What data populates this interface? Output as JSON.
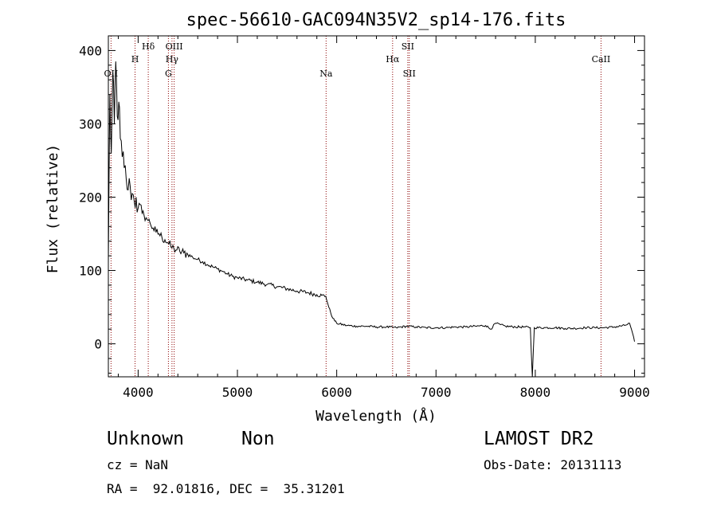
{
  "chart_data": {
    "type": "line",
    "title": "spec-56610-GAC094N35V2_sp14-176.fits",
    "xlabel": "Wavelength (Å)",
    "ylabel": "Flux (relative)",
    "xlim": [
      3700,
      9100
    ],
    "ylim": [
      -45,
      420
    ],
    "x_ticks": [
      "4000",
      "5000",
      "6000",
      "7000",
      "8000",
      "9000"
    ],
    "y_ticks": [
      "0",
      "100",
      "200",
      "300",
      "400"
    ],
    "x_tick_values": [
      4000,
      5000,
      6000,
      7000,
      8000,
      9000
    ],
    "y_tick_values": [
      0,
      100,
      200,
      300,
      400
    ],
    "series": [
      {
        "values": [
          [
            3700,
            110
          ],
          [
            3715,
            340
          ],
          [
            3730,
            260
          ],
          [
            3745,
            370
          ],
          [
            3760,
            300
          ],
          [
            3775,
            385
          ],
          [
            3790,
            310
          ],
          [
            3805,
            330
          ],
          [
            3820,
            280
          ],
          [
            3840,
            255
          ],
          [
            3860,
            240
          ],
          [
            3880,
            225
          ],
          [
            3900,
            210
          ],
          [
            3920,
            215
          ],
          [
            3940,
            205
          ],
          [
            3960,
            195
          ],
          [
            3980,
            200
          ],
          [
            4000,
            185
          ],
          [
            4020,
            190
          ],
          [
            4040,
            178
          ],
          [
            4060,
            175
          ],
          [
            4080,
            172
          ],
          [
            4100,
            168
          ],
          [
            4120,
            165
          ],
          [
            4150,
            158
          ],
          [
            4180,
            152
          ],
          [
            4210,
            150
          ],
          [
            4240,
            145
          ],
          [
            4270,
            142
          ],
          [
            4300,
            138
          ],
          [
            4330,
            132
          ],
          [
            4360,
            130
          ],
          [
            4390,
            128
          ],
          [
            4420,
            126
          ],
          [
            4460,
            124
          ],
          [
            4500,
            122
          ],
          [
            4550,
            118
          ],
          [
            4600,
            115
          ],
          [
            4650,
            112
          ],
          [
            4700,
            108
          ],
          [
            4750,
            105
          ],
          [
            4800,
            102
          ],
          [
            4850,
            99
          ],
          [
            4900,
            95
          ],
          [
            4950,
            92
          ],
          [
            5000,
            90
          ],
          [
            5100,
            87
          ],
          [
            5200,
            84
          ],
          [
            5300,
            81
          ],
          [
            5400,
            78
          ],
          [
            5500,
            75
          ],
          [
            5600,
            72
          ],
          [
            5700,
            70
          ],
          [
            5800,
            67
          ],
          [
            5850,
            66
          ],
          [
            5890,
            65
          ],
          [
            5920,
            50
          ],
          [
            5960,
            35
          ],
          [
            6000,
            28
          ],
          [
            6100,
            25
          ],
          [
            6200,
            24
          ],
          [
            6300,
            24
          ],
          [
            6400,
            23
          ],
          [
            6500,
            23
          ],
          [
            6600,
            22
          ],
          [
            6700,
            24
          ],
          [
            6800,
            23
          ],
          [
            6900,
            22
          ],
          [
            7000,
            22
          ],
          [
            7100,
            22
          ],
          [
            7200,
            23
          ],
          [
            7300,
            23
          ],
          [
            7400,
            24
          ],
          [
            7500,
            25
          ],
          [
            7550,
            20
          ],
          [
            7600,
            28
          ],
          [
            7650,
            26
          ],
          [
            7700,
            24
          ],
          [
            7800,
            23
          ],
          [
            7900,
            23
          ],
          [
            7950,
            22
          ],
          [
            7970,
            -45
          ],
          [
            7990,
            22
          ],
          [
            8100,
            22
          ],
          [
            8200,
            22
          ],
          [
            8300,
            21
          ],
          [
            8400,
            21
          ],
          [
            8500,
            22
          ],
          [
            8600,
            22
          ],
          [
            8700,
            22
          ],
          [
            8800,
            23
          ],
          [
            8900,
            25
          ],
          [
            8950,
            28
          ],
          [
            9000,
            3
          ]
        ]
      }
    ],
    "lines": [
      {
        "label": "OII",
        "x": 3727
      },
      {
        "label": "H",
        "x": 3969
      },
      {
        "label": "Hδ",
        "x": 4102
      },
      {
        "label": "G",
        "x": 4305
      },
      {
        "label": "Hγ",
        "x": 4341
      },
      {
        "label": "OIII",
        "x": 4363
      },
      {
        "label": "Na",
        "x": 5893
      },
      {
        "label": "Hα",
        "x": 6563
      },
      {
        "label": "SII",
        "x": 6716
      },
      {
        "label": "SII",
        "x": 6731
      },
      {
        "label": "CaII",
        "x": 8662
      }
    ],
    "grid": false,
    "legend": "none",
    "line_color": "#000000",
    "marker_color": "#8b0000"
  },
  "info": {
    "classification": "Unknown",
    "subclass": "Non",
    "survey": "LAMOST DR2",
    "cz": "cz = NaN",
    "obs_date": "Obs-Date: 20131113",
    "radec": "RA =  92.01816, DEC =  35.31201"
  }
}
